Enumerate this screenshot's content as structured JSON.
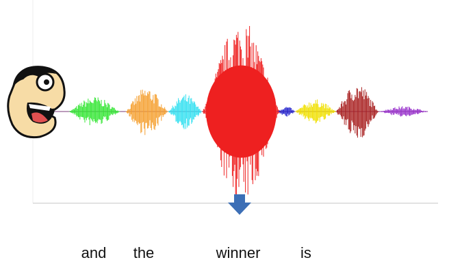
{
  "caption": {
    "words": [
      "and",
      "the",
      "winner",
      "is"
    ]
  }
}
